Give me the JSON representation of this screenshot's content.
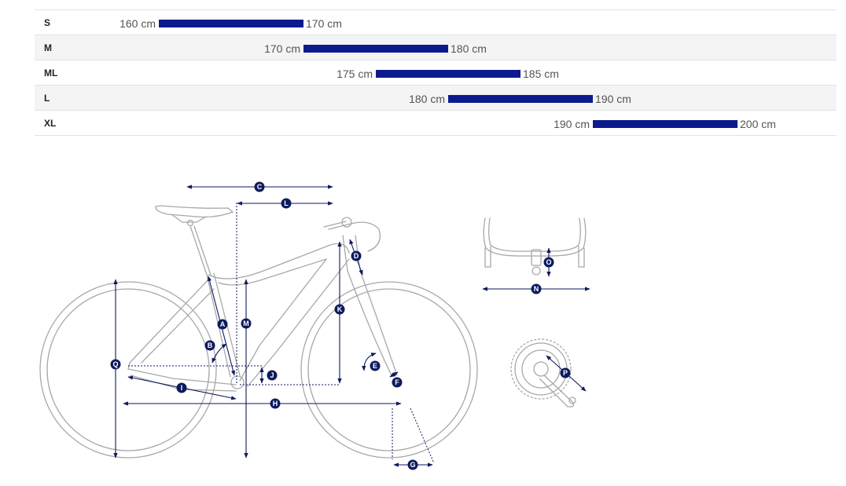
{
  "sizes": [
    {
      "label": "S",
      "min_text": "160 cm",
      "max_text": "170 cm",
      "min_cm": 160,
      "max_cm": 170
    },
    {
      "label": "M",
      "min_text": "170 cm",
      "max_text": "180 cm",
      "min_cm": 170,
      "max_cm": 180
    },
    {
      "label": "ML",
      "min_text": "175 cm",
      "max_text": "185 cm",
      "min_cm": 175,
      "max_cm": 185
    },
    {
      "label": "L",
      "min_text": "180 cm",
      "max_text": "190 cm",
      "min_cm": 180,
      "max_cm": 190
    },
    {
      "label": "XL",
      "min_text": "190 cm",
      "max_text": "200 cm",
      "min_cm": 190,
      "max_cm": 200
    }
  ],
  "measurement_labels": {
    "a": "A",
    "b": "B",
    "c": "C",
    "d": "D",
    "e": "E",
    "f": "F",
    "g": "G",
    "h": "H",
    "i": "I",
    "j": "J",
    "k": "K",
    "l": "L",
    "m": "M",
    "n": "N",
    "o": "O",
    "p": "P",
    "q": "Q"
  },
  "colors": {
    "bar": "#0d1a8e",
    "label_badge": "#0d1a5e",
    "frame_line": "#a8a8a8",
    "row_alt": "#f4f4f4"
  }
}
